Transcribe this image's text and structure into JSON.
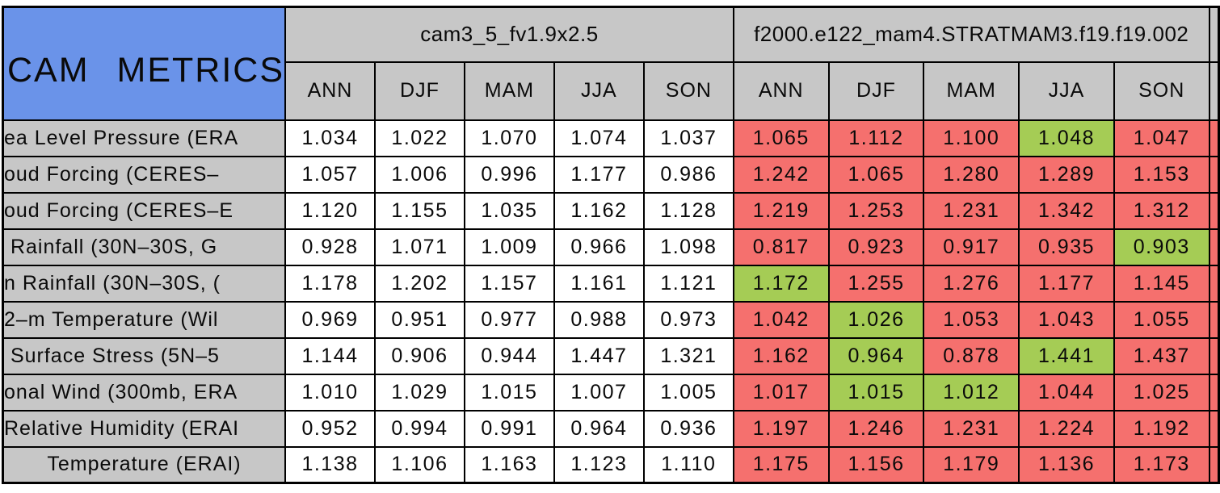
{
  "title": "CAM METRICS",
  "colors": {
    "title_bg": "#6A93E9",
    "header_bg": "#C7C7C7",
    "highlight_green": "#A5CC55",
    "highlight_red": "#F5706E",
    "plain_cell": "#FFFFFF",
    "border": "#000000"
  },
  "model_groups": [
    {
      "name": "cam3_5_fv1.9x2.5"
    },
    {
      "name": "f2000.e122_mam4.STRATMAM3.f19.f19.002"
    }
  ],
  "seasons": [
    "ANN",
    "DJF",
    "MAM",
    "JJA",
    "SON"
  ],
  "rows": [
    {
      "label": "ea Level Pressure (ERA",
      "m1": [
        "1.034",
        "1.022",
        "1.070",
        "1.074",
        "1.037"
      ],
      "m2": [
        "1.065",
        "1.112",
        "1.100",
        "1.048",
        "1.047"
      ],
      "flags": [
        "red",
        "red",
        "red",
        "green",
        "red"
      ]
    },
    {
      "label": "oud Forcing (CERES–",
      "m1": [
        "1.057",
        "1.006",
        "0.996",
        "1.177",
        "0.986"
      ],
      "m2": [
        "1.242",
        "1.065",
        "1.280",
        "1.289",
        "1.153"
      ],
      "flags": [
        "red",
        "red",
        "red",
        "red",
        "red"
      ]
    },
    {
      "label": "oud Forcing (CERES–E",
      "m1": [
        "1.120",
        "1.155",
        "1.035",
        "1.162",
        "1.128"
      ],
      "m2": [
        "1.219",
        "1.253",
        "1.231",
        "1.342",
        "1.312"
      ],
      "flags": [
        "red",
        "red",
        "red",
        "red",
        "red"
      ]
    },
    {
      "label": " Rainfall (30N–30S, G",
      "m1": [
        "0.928",
        "1.071",
        "1.009",
        "0.966",
        "1.098"
      ],
      "m2": [
        "0.817",
        "0.923",
        "0.917",
        "0.935",
        "0.903"
      ],
      "flags": [
        "red",
        "red",
        "red",
        "red",
        "green"
      ]
    },
    {
      "label": "n Rainfall (30N–30S, (",
      "m1": [
        "1.178",
        "1.202",
        "1.157",
        "1.161",
        "1.121"
      ],
      "m2": [
        "1.172",
        "1.255",
        "1.276",
        "1.177",
        "1.145"
      ],
      "flags": [
        "green",
        "red",
        "red",
        "red",
        "red"
      ]
    },
    {
      "label": "2–m Temperature (Wil",
      "m1": [
        "0.969",
        "0.951",
        "0.977",
        "0.988",
        "0.973"
      ],
      "m2": [
        "1.042",
        "1.026",
        "1.053",
        "1.043",
        "1.055"
      ],
      "flags": [
        "red",
        "green",
        "red",
        "red",
        "red"
      ]
    },
    {
      "label": " Surface Stress (5N–5",
      "m1": [
        "1.144",
        "0.906",
        "0.944",
        "1.447",
        "1.321"
      ],
      "m2": [
        "1.162",
        "0.964",
        "0.878",
        "1.441",
        "1.437"
      ],
      "flags": [
        "red",
        "green",
        "red",
        "green",
        "red"
      ]
    },
    {
      "label": "onal Wind (300mb, ERA",
      "m1": [
        "1.010",
        "1.029",
        "1.015",
        "1.007",
        "1.005"
      ],
      "m2": [
        "1.017",
        "1.015",
        "1.012",
        "1.044",
        "1.025"
      ],
      "flags": [
        "red",
        "green",
        "green",
        "red",
        "red"
      ]
    },
    {
      "label": "Relative Humidity (ERAI",
      "m1": [
        "0.952",
        "0.994",
        "0.991",
        "0.964",
        "0.936"
      ],
      "m2": [
        "1.197",
        "1.246",
        "1.231",
        "1.224",
        "1.192"
      ],
      "flags": [
        "red",
        "red",
        "red",
        "red",
        "red"
      ]
    },
    {
      "label": "Temperature (ERAI)",
      "m1": [
        "1.138",
        "1.106",
        "1.163",
        "1.123",
        "1.110"
      ],
      "m2": [
        "1.175",
        "1.156",
        "1.179",
        "1.136",
        "1.173"
      ],
      "flags": [
        "red",
        "red",
        "red",
        "red",
        "red"
      ]
    }
  ],
  "chart_data": {
    "type": "table",
    "title": "CAM METRICS",
    "column_groups": [
      "cam3_5_fv1.9x2.5",
      "f2000.e122_mam4.STRATMAM3.f19.f19.002"
    ],
    "columns": [
      "ANN",
      "DJF",
      "MAM",
      "JJA",
      "SON",
      "ANN",
      "DJF",
      "MAM",
      "JJA",
      "SON"
    ],
    "row_labels": [
      "ea Level Pressure (ERA",
      "oud Forcing (CERES–",
      "oud Forcing (CERES–E",
      " Rainfall (30N–30S, G",
      "n Rainfall (30N–30S, (",
      "2–m Temperature (Wil",
      " Surface Stress (5N–5",
      "onal Wind (300mb, ERA",
      "Relative Humidity (ERAI",
      "Temperature (ERAI)"
    ],
    "values": [
      [
        1.034,
        1.022,
        1.07,
        1.074,
        1.037,
        1.065,
        1.112,
        1.1,
        1.048,
        1.047
      ],
      [
        1.057,
        1.006,
        0.996,
        1.177,
        0.986,
        1.242,
        1.065,
        1.28,
        1.289,
        1.153
      ],
      [
        1.12,
        1.155,
        1.035,
        1.162,
        1.128,
        1.219,
        1.253,
        1.231,
        1.342,
        1.312
      ],
      [
        0.928,
        1.071,
        1.009,
        0.966,
        1.098,
        0.817,
        0.923,
        0.917,
        0.935,
        0.903
      ],
      [
        1.178,
        1.202,
        1.157,
        1.161,
        1.121,
        1.172,
        1.255,
        1.276,
        1.177,
        1.145
      ],
      [
        0.969,
        0.951,
        0.977,
        0.988,
        0.973,
        1.042,
        1.026,
        1.053,
        1.043,
        1.055
      ],
      [
        1.144,
        0.906,
        0.944,
        1.447,
        1.321,
        1.162,
        0.964,
        0.878,
        1.441,
        1.437
      ],
      [
        1.01,
        1.029,
        1.015,
        1.007,
        1.005,
        1.017,
        1.015,
        1.012,
        1.044,
        1.025
      ],
      [
        0.952,
        0.994,
        0.991,
        0.964,
        0.936,
        1.197,
        1.246,
        1.231,
        1.224,
        1.192
      ],
      [
        1.138,
        1.106,
        1.163,
        1.123,
        1.11,
        1.175,
        1.156,
        1.179,
        1.136,
        1.173
      ]
    ],
    "cell_highlight_group2": [
      [
        "red",
        "red",
        "red",
        "green",
        "red"
      ],
      [
        "red",
        "red",
        "red",
        "red",
        "red"
      ],
      [
        "red",
        "red",
        "red",
        "red",
        "red"
      ],
      [
        "red",
        "red",
        "red",
        "red",
        "green"
      ],
      [
        "green",
        "red",
        "red",
        "red",
        "red"
      ],
      [
        "red",
        "green",
        "red",
        "red",
        "red"
      ],
      [
        "red",
        "green",
        "red",
        "green",
        "red"
      ],
      [
        "red",
        "green",
        "green",
        "red",
        "red"
      ],
      [
        "red",
        "red",
        "red",
        "red",
        "red"
      ],
      [
        "red",
        "red",
        "red",
        "red",
        "red"
      ]
    ],
    "layout": "first column row labels (clipped at left image edge); two 5-season column groups; group 1 cells white, group 2 cells colored red/green"
  }
}
